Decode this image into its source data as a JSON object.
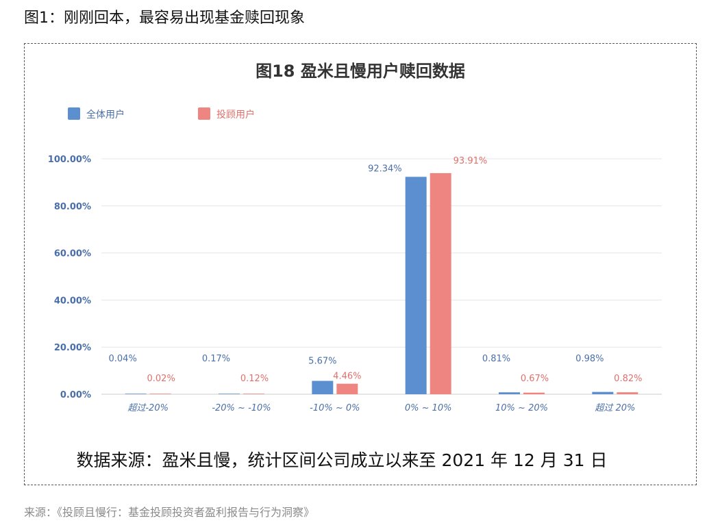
{
  "article": {
    "figure_caption": "图1：刚刚回本，最容易出现基金赎回现象",
    "source_caption": "来源：《投顾且慢行：基金投顾投资者盈利报告与行为洞察》"
  },
  "chart_data": {
    "type": "bar",
    "title": "图18 盈米且慢用户赎回数据",
    "xlabel": "",
    "ylabel": "",
    "categories": [
      "超过-20%",
      "-20% ~ -10%",
      "-10% ~ 0%",
      "0% ~ 10%",
      "10% ~ 20%",
      "超过 20%"
    ],
    "series": [
      {
        "name": "全体用户",
        "color": "#5b8fcf",
        "values": [
          0.04,
          0.17,
          5.67,
          92.34,
          0.81,
          0.98
        ],
        "labels": [
          "0.04%",
          "0.17%",
          "5.67%",
          "92.34%",
          "0.81%",
          "0.98%"
        ]
      },
      {
        "name": "投顾用户",
        "color": "#ef8580",
        "values": [
          0.02,
          0.12,
          4.46,
          93.91,
          0.67,
          0.82
        ],
        "labels": [
          "0.02%",
          "0.12%",
          "4.46%",
          "93.91%",
          "0.67%",
          "0.82%"
        ]
      }
    ],
    "ylim": [
      0,
      100
    ],
    "yticks": [
      "0.00%",
      "20.00%",
      "40.00%",
      "60.00%",
      "80.00%",
      "100.00%"
    ],
    "grid": true,
    "legend_position": "top-left",
    "note": "数据来源：盈米且慢，统计区间公司成立以来至 2021 年 12 月 31 日",
    "colors": {
      "axis_text": "#4a6fa8",
      "grid": "#e6e6e6",
      "title": "#333333"
    }
  }
}
